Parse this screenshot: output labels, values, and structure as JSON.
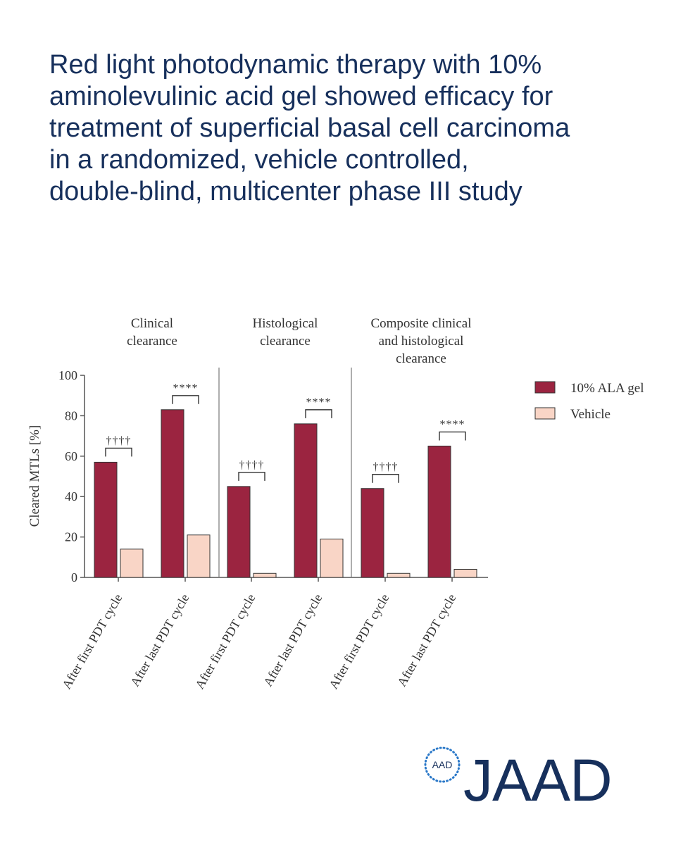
{
  "headline": [
    "Red light photodynamic therapy with 10%",
    "aminolevulinic acid gel showed efficacy for",
    "treatment of superficial basal cell carcinoma",
    "in a randomized, vehicle controlled,",
    "double-blind, multicenter phase III study"
  ],
  "chart_data": {
    "type": "bar",
    "title": "",
    "ylabel": "Cleared MTLs [%]",
    "xlabel": "",
    "ylim": [
      0,
      100
    ],
    "yticks": [
      "0",
      "20",
      "40",
      "60",
      "80",
      "100"
    ],
    "panels": [
      {
        "title": [
          "Clinical",
          "clearance"
        ]
      },
      {
        "title": [
          "Histological",
          "clearance"
        ]
      },
      {
        "title": [
          "Composite clinical",
          "and histological",
          "clearance"
        ]
      }
    ],
    "categories": [
      "After first PDT cycle",
      "After last PDT cycle",
      "After first PDT cycle",
      "After last PDT cycle",
      "After first PDT cycle",
      "After last PDT cycle"
    ],
    "series": [
      {
        "name": "10% ALA gel",
        "color": "#9b2440",
        "values": [
          57,
          83,
          45,
          76,
          44,
          65
        ]
      },
      {
        "name": "Vehicle",
        "color": "#f9d5c6",
        "values": [
          14,
          21,
          2,
          19,
          2,
          4
        ]
      }
    ],
    "annotations": [
      "††††",
      "****",
      "††††",
      "****",
      "††††",
      "****"
    ],
    "legend_position": "right"
  },
  "logo": {
    "badge": "AAD",
    "wordmark": "JAAD"
  },
  "colors": {
    "headline": "#17305c",
    "axis": "#555555"
  }
}
